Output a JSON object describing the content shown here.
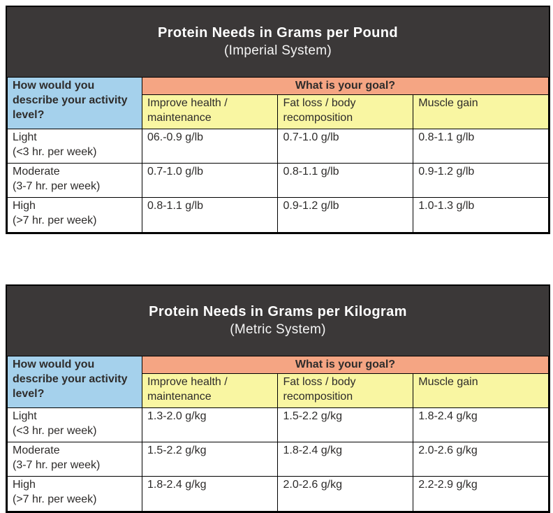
{
  "colors": {
    "title_bar_bg": "#3b3838",
    "title_text": "#ffffff",
    "activity_header_bg": "#a5d1ec",
    "goal_header_bg": "#f5a583",
    "goal_column_bg": "#f9f6a2",
    "border": "#000000",
    "body_text": "#2d2b2a"
  },
  "tables": [
    {
      "title": "Protein Needs in Grams per Pound",
      "subtitle": "(Imperial System)",
      "corner_header": "How would you describe your activity level?",
      "goal_header": "What is your goal?",
      "goal_columns": [
        "Improve health / maintenance",
        "Fat loss / body recomposition",
        "Muscle gain"
      ],
      "rows": [
        {
          "label": "Light",
          "sublabel": "(<3 hr. per week)",
          "values": [
            "06.-0.9 g/lb",
            "0.7-1.0 g/lb",
            "0.8-1.1 g/lb"
          ]
        },
        {
          "label": "Moderate",
          "sublabel": "(3-7 hr. per week)",
          "values": [
            "0.7-1.0 g/lb",
            "0.8-1.1 g/lb",
            "0.9-1.2 g/lb"
          ]
        },
        {
          "label": "High",
          "sublabel": "(>7 hr. per week)",
          "values": [
            "0.8-1.1 g/lb",
            "0.9-1.2 g/lb",
            "1.0-1.3 g/lb"
          ]
        }
      ]
    },
    {
      "title": "Protein Needs in Grams per Kilogram",
      "subtitle": "(Metric System)",
      "corner_header": "How would you describe your activity level?",
      "goal_header": "What is your goal?",
      "goal_columns": [
        "Improve health / maintenance",
        "Fat loss / body recomposition",
        "Muscle gain"
      ],
      "rows": [
        {
          "label": "Light",
          "sublabel": "(<3 hr. per week)",
          "values": [
            "1.3-2.0 g/kg",
            "1.5-2.2 g/kg",
            "1.8-2.4 g/kg"
          ]
        },
        {
          "label": "Moderate",
          "sublabel": "(3-7 hr. per week)",
          "values": [
            "1.5-2.2 g/kg",
            "1.8-2.4 g/kg",
            "2.0-2.6 g/kg"
          ]
        },
        {
          "label": "High",
          "sublabel": "(>7 hr. per week)",
          "values": [
            "1.8-2.4 g/kg",
            "2.0-2.6 g/kg",
            "2.2-2.9 g/kg"
          ]
        }
      ]
    }
  ]
}
